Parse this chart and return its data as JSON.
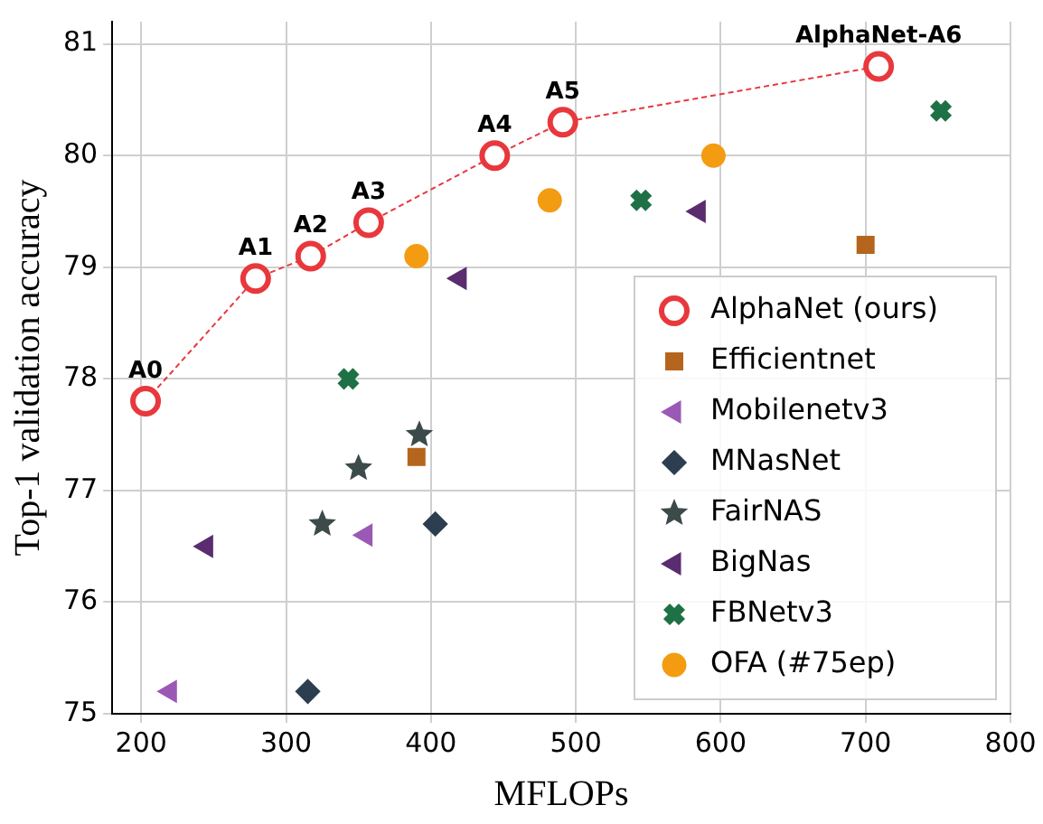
{
  "chart_data": {
    "type": "scatter",
    "xlabel": "MFLOPs",
    "ylabel": "Top-1 validation accuracy",
    "xlim": [
      180,
      800
    ],
    "xticks": [
      200,
      300,
      400,
      500,
      600,
      700,
      800
    ],
    "ylim": [
      75,
      81.2
    ],
    "yticks": [
      75,
      76,
      77,
      78,
      79,
      80,
      81
    ],
    "grid": true,
    "legend": "bottom right",
    "series": [
      {
        "name": "AlphaNet (ours)",
        "type": "line",
        "line_style": "dashed",
        "marker": "circle",
        "color": "#e8383d",
        "x": [
          203,
          279,
          317,
          357,
          444,
          491,
          709
        ],
        "values": [
          77.8,
          78.9,
          79.1,
          79.4,
          80.0,
          80.3,
          80.8
        ]
      },
      {
        "name": "Efficientnet",
        "marker": "square",
        "color": "#b5651d",
        "x": [
          390,
          700
        ],
        "values": [
          77.3,
          79.2
        ]
      },
      {
        "name": "Mobilenetv3",
        "marker": "triangle",
        "color": "#9b59b6",
        "x": [
          220,
          355
        ],
        "values": [
          75.2,
          76.6
        ]
      },
      {
        "name": "MNasNet",
        "marker": "diamond",
        "color": "#2c3e50",
        "x": [
          315,
          403
        ],
        "values": [
          75.2,
          76.7
        ]
      },
      {
        "name": "FairNAS",
        "marker": "star",
        "color": "#3d4a4a",
        "x": [
          325,
          350,
          392
        ],
        "values": [
          76.7,
          77.2,
          77.5
        ]
      },
      {
        "name": "BigNas",
        "marker": "triangle",
        "color": "#5b2c6f",
        "x": [
          245,
          420,
          585
        ],
        "values": [
          76.5,
          78.9,
          79.5
        ]
      },
      {
        "name": "FBNetv3",
        "marker": "cross",
        "color": "#1e7145",
        "x": [
          343,
          545,
          752
        ],
        "values": [
          78.0,
          79.6,
          80.4
        ]
      },
      {
        "name": "OFA (#75ep)",
        "marker": "circle",
        "color": "#f39c12",
        "x": [
          390,
          482,
          595
        ],
        "values": [
          79.1,
          79.6,
          80.0
        ]
      }
    ],
    "annotations": [
      {
        "text": "A0",
        "x": 203,
        "y": 77.8
      },
      {
        "text": "A1",
        "x": 279,
        "y": 78.9
      },
      {
        "text": "A2",
        "x": 317,
        "y": 79.1
      },
      {
        "text": "A3",
        "x": 357,
        "y": 79.4
      },
      {
        "text": "A4",
        "x": 444,
        "y": 80.0
      },
      {
        "text": "A5",
        "x": 491,
        "y": 80.3
      },
      {
        "text": "AlphaNet-A6",
        "x": 709,
        "y": 80.8
      }
    ]
  }
}
